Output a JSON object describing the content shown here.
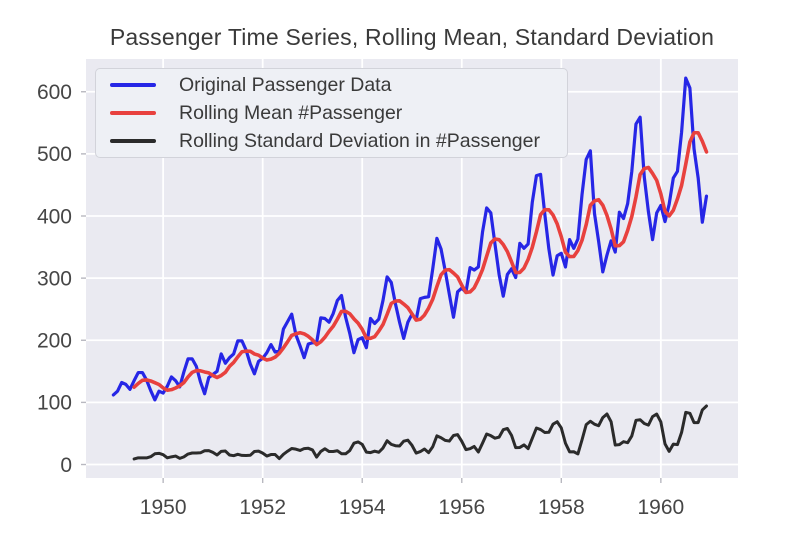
{
  "title": "Passenger Time Series, Rolling Mean, Standard Deviation",
  "chart_data": {
    "type": "line",
    "title": "Passenger Time Series, Rolling Mean, Standard Deviation",
    "xlabel": "",
    "ylabel": "",
    "grid": true,
    "legend_position": "upper left",
    "x_tick_labels": [
      "1950",
      "1952",
      "1954",
      "1956",
      "1958",
      "1960"
    ],
    "x_tick_values": [
      1950,
      1952,
      1954,
      1956,
      1958,
      1960
    ],
    "y_tick_labels": [
      "0",
      "100",
      "200",
      "300",
      "400",
      "500",
      "600"
    ],
    "y_tick_values": [
      0,
      100,
      200,
      300,
      400,
      500,
      600
    ],
    "xlim": [
      1948.45,
      1961.55
    ],
    "ylim": [
      -21.7,
      652.7
    ],
    "x_start_year": 1949,
    "x_step_years": 0.0833333333,
    "rolling_window_months": 6,
    "series": [
      {
        "name": "Original Passenger Data",
        "color": "#2626e6",
        "kind": "original",
        "line_width": 3.2
      },
      {
        "name": "Rolling Mean #Passenger",
        "color": "#e8413e",
        "kind": "rolling_mean",
        "line_width": 3.6
      },
      {
        "name": "Rolling Standard Deviation in #Passenger",
        "color": "#2b2b2b",
        "kind": "rolling_std",
        "line_width": 3.0
      }
    ],
    "passengers_monthly": [
      112,
      118,
      132,
      129,
      121,
      135,
      148,
      148,
      136,
      119,
      104,
      118,
      115,
      126,
      141,
      135,
      125,
      149,
      170,
      170,
      158,
      133,
      114,
      140,
      145,
      150,
      178,
      163,
      172,
      178,
      199,
      199,
      184,
      162,
      146,
      166,
      171,
      180,
      193,
      181,
      183,
      218,
      230,
      242,
      209,
      191,
      172,
      194,
      196,
      196,
      236,
      235,
      229,
      243,
      264,
      272,
      237,
      211,
      180,
      201,
      204,
      188,
      235,
      227,
      234,
      264,
      302,
      293,
      259,
      229,
      203,
      229,
      242,
      233,
      267,
      269,
      270,
      315,
      364,
      347,
      312,
      274,
      237,
      278,
      284,
      277,
      317,
      313,
      318,
      374,
      413,
      405,
      355,
      306,
      271,
      306,
      315,
      301,
      356,
      348,
      355,
      422,
      465,
      467,
      404,
      347,
      305,
      336,
      340,
      318,
      362,
      348,
      363,
      435,
      491,
      505,
      404,
      359,
      310,
      337,
      360,
      342,
      406,
      396,
      420,
      472,
      548,
      559,
      463,
      407,
      362,
      405,
      417,
      391,
      419,
      461,
      472,
      535,
      622,
      606,
      508,
      461,
      390,
      432
    ]
  },
  "colors": {
    "figure_bg": "#ffffff",
    "plot_bg": "#eaeaf1",
    "gridline": "#ffffff",
    "tick_mark": "#b8b8c0",
    "tick_text": "#464646",
    "title_text": "#3a3a3a",
    "legend_bg": "#eef0f5",
    "legend_border": "#d2d3da",
    "legend_text": "#3a3a3a"
  }
}
